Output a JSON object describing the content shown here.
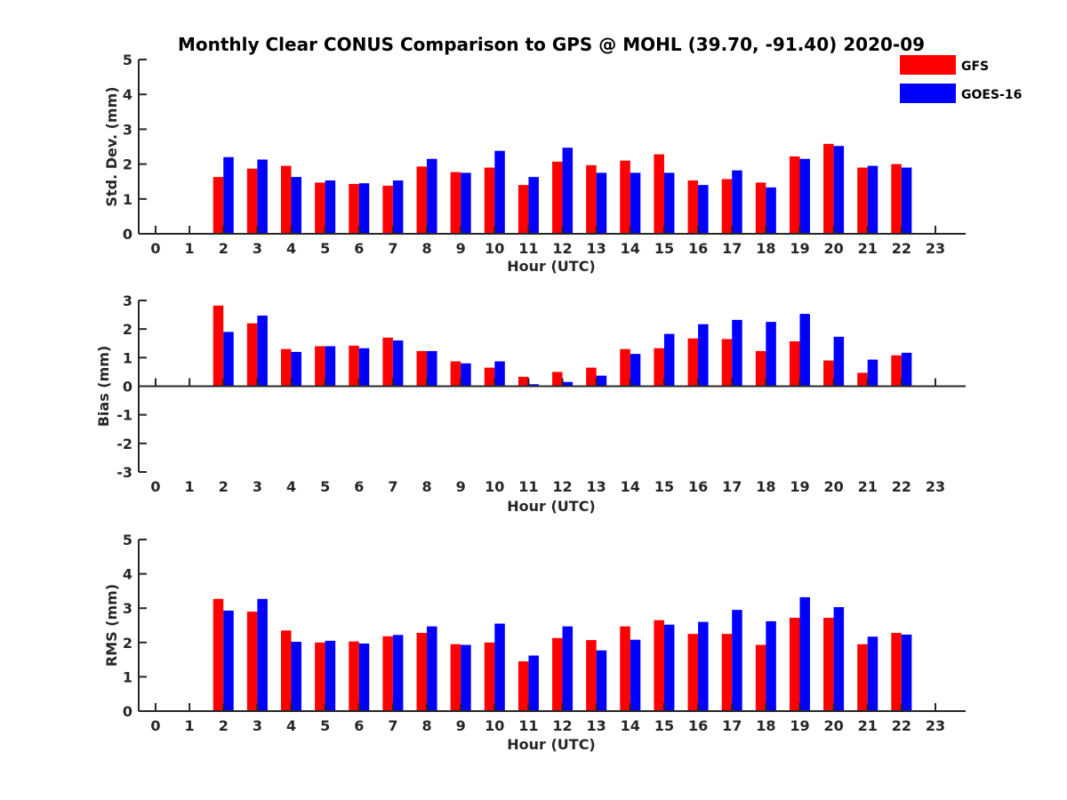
{
  "title": "Monthly Clear CONUS Comparison to GPS @ MOHL (39.70, -91.40) 2020-09",
  "legend": {
    "placement": "top-right",
    "items": [
      {
        "name": "GFS",
        "color": "#ff0000"
      },
      {
        "name": "GOES-16",
        "color": "#0000ff"
      }
    ]
  },
  "chart_data": [
    {
      "type": "bar",
      "xlabel": "Hour (UTC)",
      "ylabel": "Std. Dev. (mm)",
      "ylim": [
        0,
        5
      ],
      "yticks": [
        "0",
        "1",
        "2",
        "3",
        "4",
        "5"
      ],
      "categories": [
        "0",
        "1",
        "2",
        "3",
        "4",
        "5",
        "6",
        "7",
        "8",
        "9",
        "10",
        "11",
        "12",
        "13",
        "14",
        "15",
        "16",
        "17",
        "18",
        "19",
        "20",
        "21",
        "22",
        "23"
      ],
      "series": [
        {
          "name": "GFS",
          "color": "#ff0000",
          "values": [
            null,
            null,
            1.63,
            1.87,
            1.95,
            1.47,
            1.43,
            1.38,
            1.93,
            1.77,
            1.9,
            1.4,
            2.07,
            1.97,
            2.1,
            2.28,
            1.53,
            1.57,
            1.47,
            2.22,
            2.58,
            1.9,
            2.0,
            null
          ]
        },
        {
          "name": "GOES-16",
          "color": "#0000ff",
          "values": [
            null,
            null,
            2.2,
            2.13,
            1.63,
            1.53,
            1.45,
            1.53,
            2.15,
            1.75,
            2.38,
            1.63,
            2.47,
            1.75,
            1.75,
            1.75,
            1.4,
            1.82,
            1.33,
            2.15,
            2.52,
            1.95,
            1.9,
            null
          ]
        }
      ]
    },
    {
      "type": "bar",
      "xlabel": "Hour (UTC)",
      "ylabel": "Bias (mm)",
      "ylim": [
        -3,
        3
      ],
      "yticks": [
        "-3",
        "-2",
        "-1",
        "0",
        "1",
        "2",
        "3"
      ],
      "categories": [
        "0",
        "1",
        "2",
        "3",
        "4",
        "5",
        "6",
        "7",
        "8",
        "9",
        "10",
        "11",
        "12",
        "13",
        "14",
        "15",
        "16",
        "17",
        "18",
        "19",
        "20",
        "21",
        "22",
        "23"
      ],
      "series": [
        {
          "name": "GFS",
          "color": "#ff0000",
          "values": [
            null,
            null,
            2.82,
            2.2,
            1.3,
            1.4,
            1.42,
            1.7,
            1.23,
            0.87,
            0.65,
            0.33,
            0.5,
            0.65,
            1.3,
            1.33,
            1.67,
            1.65,
            1.23,
            1.57,
            0.9,
            0.47,
            1.08,
            null
          ]
        },
        {
          "name": "GOES-16",
          "color": "#0000ff",
          "values": [
            null,
            null,
            1.9,
            2.47,
            1.2,
            1.4,
            1.33,
            1.6,
            1.23,
            0.8,
            0.87,
            0.07,
            0.15,
            0.37,
            1.13,
            1.83,
            2.17,
            2.32,
            2.25,
            2.53,
            1.73,
            0.93,
            1.17,
            null
          ]
        }
      ]
    },
    {
      "type": "bar",
      "xlabel": "Hour (UTC)",
      "ylabel": "RMS (mm)",
      "ylim": [
        0,
        5
      ],
      "yticks": [
        "0",
        "1",
        "2",
        "3",
        "4",
        "5"
      ],
      "categories": [
        "0",
        "1",
        "2",
        "3",
        "4",
        "5",
        "6",
        "7",
        "8",
        "9",
        "10",
        "11",
        "12",
        "13",
        "14",
        "15",
        "16",
        "17",
        "18",
        "19",
        "20",
        "21",
        "22",
        "23"
      ],
      "series": [
        {
          "name": "GFS",
          "color": "#ff0000",
          "values": [
            null,
            null,
            3.27,
            2.9,
            2.35,
            2.0,
            2.03,
            2.18,
            2.28,
            1.95,
            2.0,
            1.45,
            2.13,
            2.07,
            2.47,
            2.65,
            2.25,
            2.25,
            1.93,
            2.72,
            2.72,
            1.95,
            2.28,
            null
          ]
        },
        {
          "name": "GOES-16",
          "color": "#0000ff",
          "values": [
            null,
            null,
            2.93,
            3.27,
            2.02,
            2.05,
            1.97,
            2.22,
            2.47,
            1.93,
            2.55,
            1.62,
            2.47,
            1.77,
            2.08,
            2.52,
            2.6,
            2.95,
            2.62,
            3.32,
            3.03,
            2.17,
            2.23,
            null
          ]
        }
      ]
    }
  ]
}
